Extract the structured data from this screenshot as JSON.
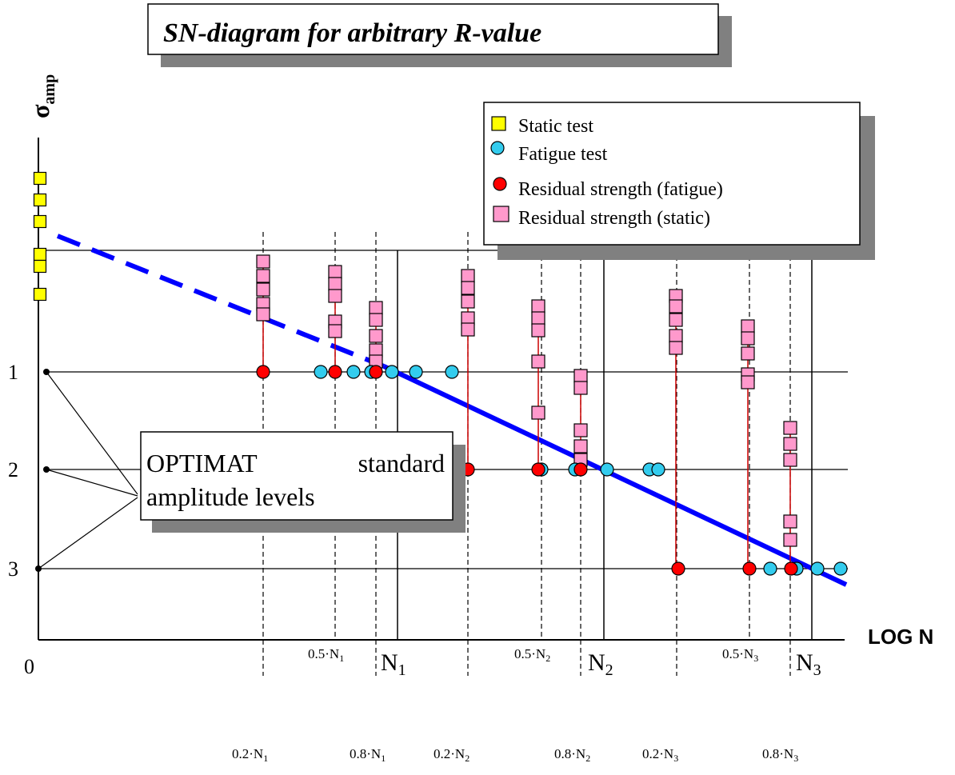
{
  "title": "SN-diagram for arbitrary R-value",
  "y_axis_label": {
    "main": "σ",
    "sub": "amp"
  },
  "x_axis_label": "LOG N",
  "origin_label": "0",
  "level_labels": [
    "1",
    "2",
    "3"
  ],
  "callout": {
    "line1_left": "OPTIMAT",
    "line1_right": "standard",
    "line2": "amplitude levels"
  },
  "legend": [
    {
      "label": "Static test",
      "marker": "square",
      "color": "#ffff00"
    },
    {
      "label": "Fatigue test",
      "marker": "circle",
      "color": "#33ccee"
    },
    {
      "label": "Residual strength (fatigue)",
      "marker": "circle",
      "color": "#ff0000"
    },
    {
      "label": "Residual strength (static)",
      "marker": "square",
      "color": "#ff99cc"
    }
  ],
  "n_labels": [
    {
      "main": "N",
      "sub": "1"
    },
    {
      "main": "N",
      "sub": "2"
    },
    {
      "main": "N",
      "sub": "3"
    }
  ],
  "fraction_labels": [
    {
      "factor": "0.2·N",
      "sub": "1"
    },
    {
      "factor": "0.5·N",
      "sub": "1"
    },
    {
      "factor": "0.8·N",
      "sub": "1"
    },
    {
      "factor": "0.2·N",
      "sub": "2"
    },
    {
      "factor": "0.5·N",
      "sub": "2"
    },
    {
      "factor": "0.8·N",
      "sub": "2"
    },
    {
      "factor": "0.2·N",
      "sub": "3"
    },
    {
      "factor": "0.5·N",
      "sub": "3"
    },
    {
      "factor": "0.8·N",
      "sub": "3"
    }
  ],
  "colors": {
    "sn_curve": "#0000ff",
    "static_marker": "#ffff00",
    "fatigue_marker": "#33ccee",
    "residual_fatigue_marker": "#ff0000",
    "residual_static_marker": "#ff99cc",
    "residual_link": "#cc0000",
    "shadow": "#808080"
  }
}
